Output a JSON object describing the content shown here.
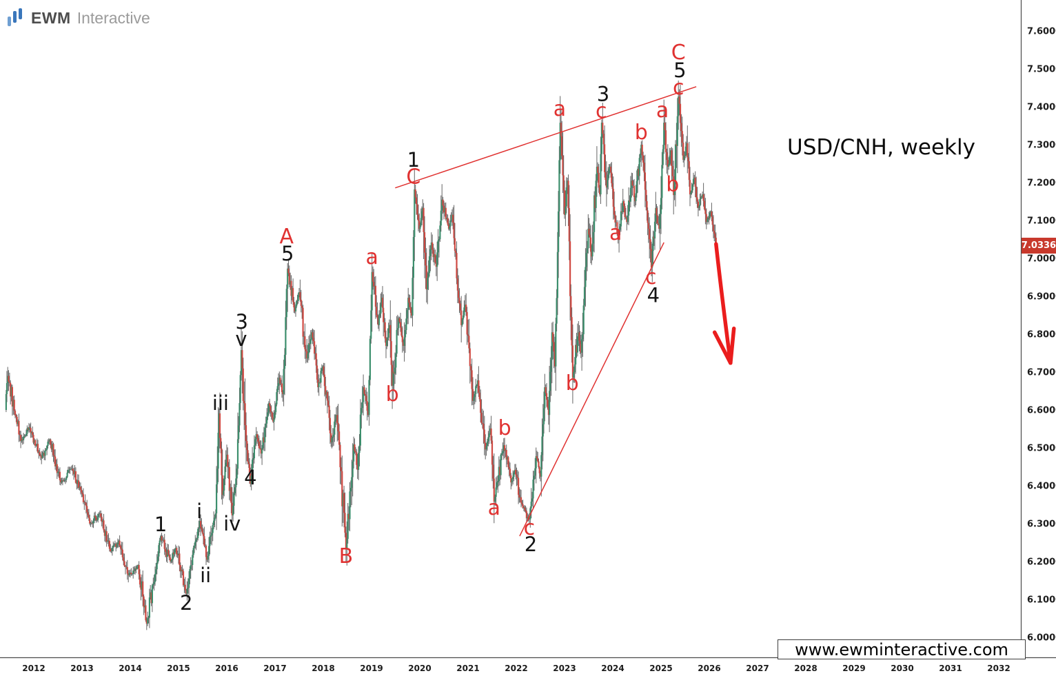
{
  "brand": {
    "bold": "EWM",
    "light": "Interactive"
  },
  "title_label": "USD/CNH, weekly",
  "watermark": "www.ewminteractive.com",
  "price_badge": "7.0336",
  "colors": {
    "up_candle": "#3c8f6d",
    "down_candle": "#cf4942",
    "wick": "#646464",
    "annotation_red": "#e03231",
    "trendline_red": "#e03231",
    "arrow_red": "#ea1d1d",
    "badge_bg": "#c8392c",
    "axis_text": "#1c1c1c",
    "axis_line": "#4a4a4a",
    "black_label": "#141414",
    "brand_blue_dark": "#3a76bb",
    "brand_blue_light": "#6f9fd2"
  },
  "chart_data": {
    "type": "candlestick",
    "symbol": "USD/CNH",
    "timeframe": "weekly",
    "current_price": 7.0336,
    "y_axis": {
      "min": 6.0,
      "max": 7.6,
      "tick_step": 0.1,
      "tick_labels": [
        "7.6000",
        "7.5000",
        "7.4000",
        "7.3000",
        "7.2000",
        "7.1000",
        "7.0000",
        "6.9000",
        "6.8000",
        "6.7000",
        "6.6000",
        "6.5000",
        "6.4000",
        "6.3000",
        "6.2000",
        "6.1000",
        "6.0000"
      ]
    },
    "x_axis": {
      "tick_labels": [
        "2012",
        "2013",
        "2014",
        "2015",
        "2016",
        "2017",
        "2018",
        "2019",
        "2020",
        "2021",
        "2022",
        "2023",
        "2024",
        "2025",
        "2026",
        "2027",
        "2028",
        "2029",
        "2030",
        "2031",
        "2032"
      ]
    },
    "pivots": [
      [
        2011.41,
        6.6
      ],
      [
        2011.46,
        6.69
      ],
      [
        2011.73,
        6.518
      ],
      [
        2011.9,
        6.555
      ],
      [
        2012.16,
        6.473
      ],
      [
        2012.33,
        6.522
      ],
      [
        2012.56,
        6.409
      ],
      [
        2012.79,
        6.445
      ],
      [
        2012.99,
        6.382
      ],
      [
        2013.16,
        6.3
      ],
      [
        2013.37,
        6.327
      ],
      [
        2013.59,
        6.227
      ],
      [
        2013.76,
        6.255
      ],
      [
        2013.96,
        6.164
      ],
      [
        2014.16,
        6.191
      ],
      [
        2014.34,
        6.036
      ],
      [
        2014.63,
        6.267
      ],
      [
        2014.83,
        6.2
      ],
      [
        2014.94,
        6.236
      ],
      [
        2015.16,
        6.115
      ],
      [
        2015.44,
        6.307
      ],
      [
        2015.59,
        6.205
      ],
      [
        2015.77,
        6.327
      ],
      [
        2015.84,
        6.591
      ],
      [
        2015.91,
        6.376
      ],
      [
        2016.0,
        6.482
      ],
      [
        2016.11,
        6.322
      ],
      [
        2016.21,
        6.445
      ],
      [
        2016.3,
        6.758
      ],
      [
        2016.4,
        6.518
      ],
      [
        2016.49,
        6.405
      ],
      [
        2016.61,
        6.536
      ],
      [
        2016.71,
        6.485
      ],
      [
        2016.87,
        6.618
      ],
      [
        2016.96,
        6.569
      ],
      [
        2017.09,
        6.685
      ],
      [
        2017.16,
        6.642
      ],
      [
        2017.26,
        6.973
      ],
      [
        2017.41,
        6.86
      ],
      [
        2017.5,
        6.911
      ],
      [
        2017.66,
        6.736
      ],
      [
        2017.76,
        6.805
      ],
      [
        2017.89,
        6.66
      ],
      [
        2017.99,
        6.715
      ],
      [
        2018.16,
        6.515
      ],
      [
        2018.27,
        6.587
      ],
      [
        2018.47,
        6.233
      ],
      [
        2018.63,
        6.509
      ],
      [
        2018.71,
        6.442
      ],
      [
        2018.83,
        6.66
      ],
      [
        2018.93,
        6.587
      ],
      [
        2019.01,
        6.964
      ],
      [
        2019.14,
        6.824
      ],
      [
        2019.21,
        6.896
      ],
      [
        2019.3,
        6.769
      ],
      [
        2019.37,
        6.824
      ],
      [
        2019.43,
        6.664
      ],
      [
        2019.56,
        6.842
      ],
      [
        2019.66,
        6.769
      ],
      [
        2019.76,
        6.896
      ],
      [
        2019.83,
        6.849
      ],
      [
        2019.89,
        7.182
      ],
      [
        2019.99,
        7.078
      ],
      [
        2020.06,
        7.133
      ],
      [
        2020.14,
        6.918
      ],
      [
        2020.24,
        7.042
      ],
      [
        2020.34,
        6.978
      ],
      [
        2020.46,
        7.155
      ],
      [
        2020.6,
        7.078
      ],
      [
        2020.67,
        7.115
      ],
      [
        2020.86,
        6.824
      ],
      [
        2020.94,
        6.878
      ],
      [
        2021.1,
        6.624
      ],
      [
        2021.2,
        6.678
      ],
      [
        2021.36,
        6.496
      ],
      [
        2021.46,
        6.551
      ],
      [
        2021.54,
        6.358
      ],
      [
        2021.74,
        6.507
      ],
      [
        2021.89,
        6.409
      ],
      [
        2021.97,
        6.442
      ],
      [
        2022.1,
        6.355
      ],
      [
        2022.27,
        6.311
      ],
      [
        2022.41,
        6.478
      ],
      [
        2022.5,
        6.424
      ],
      [
        2022.59,
        6.66
      ],
      [
        2022.67,
        6.587
      ],
      [
        2022.74,
        6.805
      ],
      [
        2022.8,
        6.715
      ],
      [
        2022.91,
        7.358
      ],
      [
        2023.0,
        7.115
      ],
      [
        2023.06,
        7.205
      ],
      [
        2023.17,
        6.685
      ],
      [
        2023.29,
        6.805
      ],
      [
        2023.34,
        6.751
      ],
      [
        2023.49,
        7.078
      ],
      [
        2023.56,
        7.005
      ],
      [
        2023.67,
        7.242
      ],
      [
        2023.73,
        7.169
      ],
      [
        2023.77,
        7.358
      ],
      [
        2023.87,
        7.187
      ],
      [
        2023.94,
        7.242
      ],
      [
        2024.03,
        7.115
      ],
      [
        2024.11,
        7.049
      ],
      [
        2024.21,
        7.151
      ],
      [
        2024.29,
        7.096
      ],
      [
        2024.39,
        7.205
      ],
      [
        2024.46,
        7.151
      ],
      [
        2024.59,
        7.3
      ],
      [
        2024.69,
        7.151
      ],
      [
        2024.74,
        7.078
      ],
      [
        2024.8,
        6.976
      ],
      [
        2024.89,
        7.133
      ],
      [
        2024.96,
        7.078
      ],
      [
        2025.06,
        7.358
      ],
      [
        2025.14,
        7.242
      ],
      [
        2025.2,
        7.285
      ],
      [
        2025.26,
        7.167
      ],
      [
        2025.36,
        7.427
      ],
      [
        2025.46,
        7.26
      ],
      [
        2025.53,
        7.304
      ],
      [
        2025.6,
        7.169
      ],
      [
        2025.69,
        7.213
      ],
      [
        2025.77,
        7.133
      ],
      [
        2025.86,
        7.169
      ],
      [
        2025.94,
        7.096
      ],
      [
        2026.03,
        7.124
      ],
      [
        2026.14,
        7.034
      ]
    ],
    "wave_labels": {
      "black": [
        {
          "t": "1",
          "x": 2014.63,
          "y": 6.298
        },
        {
          "t": "2",
          "x": 2015.16,
          "y": 6.091
        },
        {
          "t": "i",
          "x": 2015.43,
          "y": 6.333
        },
        {
          "t": "ii",
          "x": 2015.56,
          "y": 6.164
        },
        {
          "t": "iii",
          "x": 2015.87,
          "y": 6.618
        },
        {
          "t": "iv",
          "x": 2016.11,
          "y": 6.3
        },
        {
          "t": "v",
          "x": 2016.3,
          "y": 6.787
        },
        {
          "t": "3",
          "x": 2016.31,
          "y": 6.833
        },
        {
          "t": "4",
          "x": 2016.49,
          "y": 6.422
        },
        {
          "t": "5",
          "x": 2017.26,
          "y": 7.013
        },
        {
          "t": "1",
          "x": 2019.87,
          "y": 7.26
        },
        {
          "t": "2",
          "x": 2022.3,
          "y": 6.245
        },
        {
          "t": "3",
          "x": 2023.8,
          "y": 7.434
        },
        {
          "t": "4",
          "x": 2024.84,
          "y": 6.903
        },
        {
          "t": "5",
          "x": 2025.39,
          "y": 7.496
        }
      ],
      "red": [
        {
          "t": "A",
          "x": 2017.24,
          "y": 7.058
        },
        {
          "t": "B",
          "x": 2018.47,
          "y": 6.215
        },
        {
          "t": "a",
          "x": 2019.01,
          "y": 7.004
        },
        {
          "t": "b",
          "x": 2019.43,
          "y": 6.642
        },
        {
          "t": "C",
          "x": 2019.87,
          "y": 7.215
        },
        {
          "t": "a",
          "x": 2021.54,
          "y": 6.342
        },
        {
          "t": "b",
          "x": 2021.76,
          "y": 6.553
        },
        {
          "t": "c",
          "x": 2022.27,
          "y": 6.289
        },
        {
          "t": "a",
          "x": 2022.9,
          "y": 7.395
        },
        {
          "t": "b",
          "x": 2023.16,
          "y": 6.671
        },
        {
          "t": "c",
          "x": 2023.76,
          "y": 7.389
        },
        {
          "t": "a",
          "x": 2024.06,
          "y": 7.067
        },
        {
          "t": "b",
          "x": 2024.59,
          "y": 7.333
        },
        {
          "t": "c",
          "x": 2024.79,
          "y": 6.951
        },
        {
          "t": "a",
          "x": 2025.03,
          "y": 7.391
        },
        {
          "t": "b",
          "x": 2025.24,
          "y": 7.195
        },
        {
          "t": "c",
          "x": 2025.36,
          "y": 7.451
        },
        {
          "t": "C",
          "x": 2025.36,
          "y": 7.544
        }
      ]
    },
    "trendlines": [
      {
        "x1": 2019.49,
        "y1": 7.186,
        "x2": 2025.73,
        "y2": 7.453
      },
      {
        "x1": 2022.07,
        "y1": 6.267,
        "x2": 2025.06,
        "y2": 7.042
      }
    ],
    "arrow": {
      "shaft": [
        [
          2026.14,
          7.038
        ],
        [
          2026.24,
          6.92
        ],
        [
          2026.44,
          6.724
        ]
      ],
      "left_barb": [
        2026.11,
        6.805
      ],
      "right_barb": [
        2026.51,
        6.815
      ]
    }
  }
}
